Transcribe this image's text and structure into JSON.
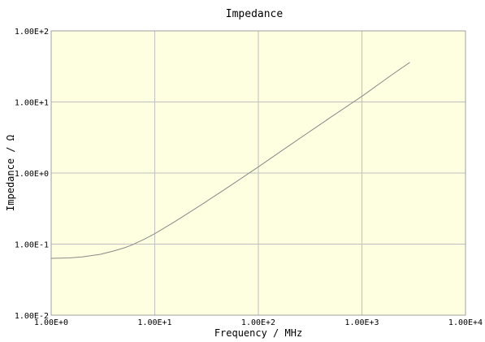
{
  "chart_data": {
    "type": "line",
    "title": "Impedance",
    "xlabel": "Frequency / MHz",
    "ylabel": "Impedance / Ω",
    "x_scale": "log",
    "y_scale": "log",
    "xlim": [
      1,
      10000
    ],
    "ylim": [
      0.01,
      100
    ],
    "grid": true,
    "x_ticks": [
      {
        "value": 1,
        "label": "1.00E+0"
      },
      {
        "value": 10,
        "label": "1.00E+1"
      },
      {
        "value": 100,
        "label": "1.00E+2"
      },
      {
        "value": 1000,
        "label": "1.00E+3"
      },
      {
        "value": 10000,
        "label": "1.00E+4"
      }
    ],
    "y_ticks": [
      {
        "value": 0.01,
        "label": "1.00E-2"
      },
      {
        "value": 0.1,
        "label": "1.00E-1"
      },
      {
        "value": 1,
        "label": "1.00E+0"
      },
      {
        "value": 10,
        "label": "1.00E+1"
      },
      {
        "value": 100,
        "label": "1.00E+2"
      }
    ],
    "series": [
      {
        "x": [
          1,
          1.5,
          2,
          3,
          4,
          5,
          6,
          8,
          10,
          15,
          20,
          30,
          50,
          100,
          200,
          500,
          1000,
          2000,
          2900
        ],
        "y": [
          0.063,
          0.064,
          0.066,
          0.072,
          0.08,
          0.088,
          0.097,
          0.118,
          0.14,
          0.2,
          0.26,
          0.38,
          0.62,
          1.22,
          2.45,
          6.1,
          12.0,
          24.8,
          36.0
        ]
      }
    ],
    "colors": {
      "plot_background": "#fefee0",
      "grid": "#c0c0c0",
      "line": "#8a8a8a",
      "frame": "#a0a0a0"
    }
  }
}
